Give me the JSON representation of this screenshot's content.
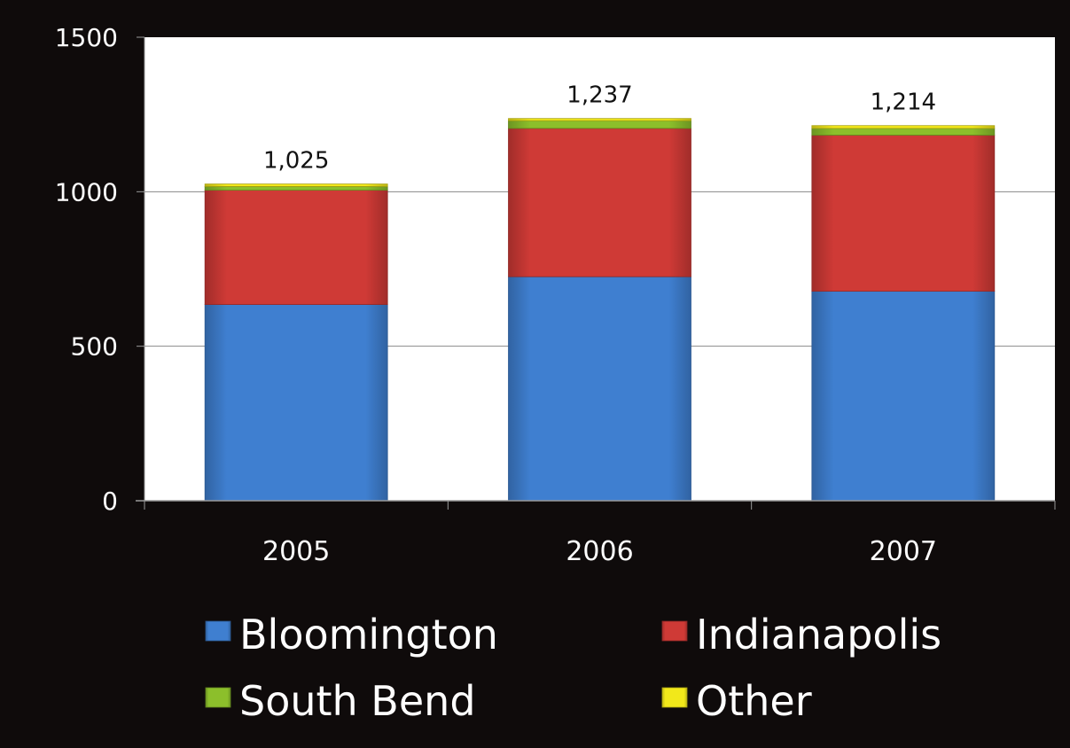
{
  "chart_data": {
    "type": "bar",
    "stacked": true,
    "title": "",
    "xlabel": "",
    "ylabel": "",
    "categories": [
      "2005",
      "2006",
      "2007"
    ],
    "ylim": [
      0,
      1500
    ],
    "yticks": [
      0,
      500,
      1000,
      1500
    ],
    "grid": true,
    "legend_position": "bottom",
    "series": [
      {
        "name": "Bloomington",
        "values": [
          635,
          725,
          678
        ]
      },
      {
        "name": "Indianapolis",
        "values": [
          370,
          480,
          505
        ]
      },
      {
        "name": "South Bend",
        "values": [
          12,
          25,
          22
        ]
      },
      {
        "name": "Other",
        "values": [
          8,
          7,
          9
        ]
      }
    ],
    "totals": [
      "1,025",
      "1,237",
      "1,214"
    ],
    "colors": {
      "Bloomington": "#3f7fd0",
      "Indianapolis": "#cf3a36",
      "South Bend": "#8cbf2b",
      "Other": "#f2e81a",
      "background": "#0f0b0b",
      "plot_area": "#ffffff",
      "gridline": "#8a8a8a",
      "axis_text": "#ffffff",
      "total_label": "#111111"
    }
  }
}
